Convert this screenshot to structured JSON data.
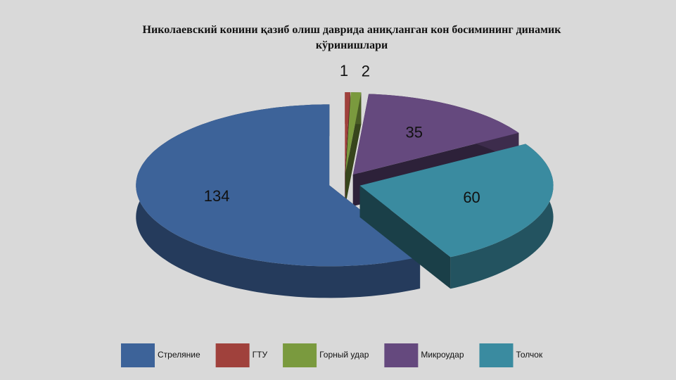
{
  "chart_data": {
    "type": "pie",
    "title": "Николаевский конини қазиб олиш даврида аниқланган кон босимининг динамик кўринишлари",
    "categories": [
      "Стреляние",
      "ГТУ",
      "Горный удар",
      "Микроудар",
      "Толчок"
    ],
    "values": [
      134,
      1,
      2,
      35,
      60
    ],
    "colors": [
      "#3d6399",
      "#a0413c",
      "#7a9a3e",
      "#65497e",
      "#3a8ba0"
    ],
    "legend": "bottom"
  }
}
